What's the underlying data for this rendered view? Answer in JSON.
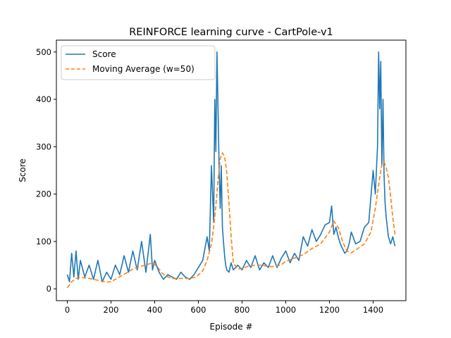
{
  "chart_data": {
    "type": "line",
    "title": "REINFORCE learning curve - CartPole-v1",
    "xlabel": "Episode #",
    "ylabel": "Score",
    "xlim": [
      -50,
      1550
    ],
    "ylim": [
      -25,
      525
    ],
    "xticks": [
      0,
      200,
      400,
      600,
      800,
      1000,
      1200,
      1400
    ],
    "yticks": [
      0,
      100,
      200,
      300,
      400,
      500
    ],
    "grid": false,
    "legend_position": "top-left",
    "series": [
      {
        "name": "Score",
        "style": "solid",
        "color": "#1f77b4",
        "x": [
          0,
          10,
          20,
          30,
          40,
          50,
          60,
          80,
          100,
          120,
          140,
          160,
          180,
          200,
          220,
          240,
          260,
          280,
          300,
          320,
          340,
          360,
          380,
          390,
          400,
          420,
          440,
          460,
          480,
          500,
          520,
          540,
          560,
          580,
          600,
          620,
          640,
          650,
          660,
          670,
          675,
          680,
          685,
          690,
          695,
          700,
          705,
          710,
          715,
          720,
          725,
          730,
          740,
          750,
          760,
          780,
          800,
          820,
          840,
          860,
          880,
          900,
          920,
          940,
          960,
          980,
          1000,
          1020,
          1040,
          1060,
          1080,
          1100,
          1120,
          1140,
          1160,
          1180,
          1200,
          1210,
          1220,
          1230,
          1240,
          1250,
          1260,
          1270,
          1280,
          1290,
          1300,
          1320,
          1340,
          1360,
          1380,
          1400,
          1410,
          1420,
          1425,
          1430,
          1435,
          1440,
          1445,
          1450,
          1455,
          1460,
          1470,
          1480,
          1490,
          1500
        ],
        "y": [
          30,
          15,
          75,
          25,
          80,
          20,
          60,
          25,
          50,
          20,
          60,
          15,
          35,
          20,
          50,
          30,
          70,
          35,
          80,
          40,
          100,
          35,
          115,
          40,
          60,
          35,
          20,
          30,
          25,
          20,
          35,
          25,
          20,
          30,
          45,
          60,
          110,
          80,
          260,
          140,
          400,
          290,
          500,
          380,
          250,
          170,
          260,
          130,
          100,
          70,
          50,
          40,
          35,
          55,
          40,
          50,
          40,
          60,
          45,
          70,
          40,
          55,
          45,
          70,
          45,
          65,
          80,
          55,
          75,
          60,
          110,
          90,
          125,
          100,
          115,
          135,
          140,
          175,
          115,
          130,
          110,
          95,
          85,
          75,
          80,
          95,
          120,
          95,
          100,
          130,
          140,
          250,
          200,
          300,
          500,
          380,
          480,
          260,
          400,
          240,
          180,
          150,
          110,
          95,
          110,
          90
        ]
      },
      {
        "name": "Moving Average (w=50)",
        "style": "dashed",
        "color": "#ff7f0e",
        "x": [
          0,
          20,
          40,
          60,
          80,
          100,
          120,
          150,
          180,
          200,
          220,
          250,
          280,
          300,
          330,
          360,
          390,
          410,
          430,
          450,
          480,
          500,
          530,
          560,
          590,
          620,
          640,
          660,
          670,
          680,
          690,
          700,
          710,
          720,
          730,
          740,
          750,
          760,
          780,
          800,
          830,
          860,
          890,
          920,
          950,
          980,
          1000,
          1040,
          1080,
          1120,
          1160,
          1200,
          1220,
          1240,
          1260,
          1280,
          1300,
          1330,
          1360,
          1390,
          1410,
          1430,
          1440,
          1450,
          1460,
          1470,
          1480,
          1490,
          1500
        ],
        "y": [
          2,
          15,
          22,
          24,
          23,
          22,
          20,
          17,
          14,
          15,
          20,
          28,
          36,
          42,
          47,
          50,
          55,
          48,
          35,
          27,
          22,
          22,
          22,
          22,
          25,
          38,
          60,
          95,
          130,
          175,
          230,
          275,
          287,
          280,
          245,
          180,
          110,
          55,
          42,
          43,
          48,
          50,
          50,
          47,
          47,
          51,
          58,
          65,
          72,
          85,
          95,
          120,
          143,
          130,
          100,
          80,
          76,
          85,
          95,
          120,
          170,
          235,
          262,
          268,
          255,
          235,
          195,
          150,
          115
        ]
      }
    ]
  }
}
